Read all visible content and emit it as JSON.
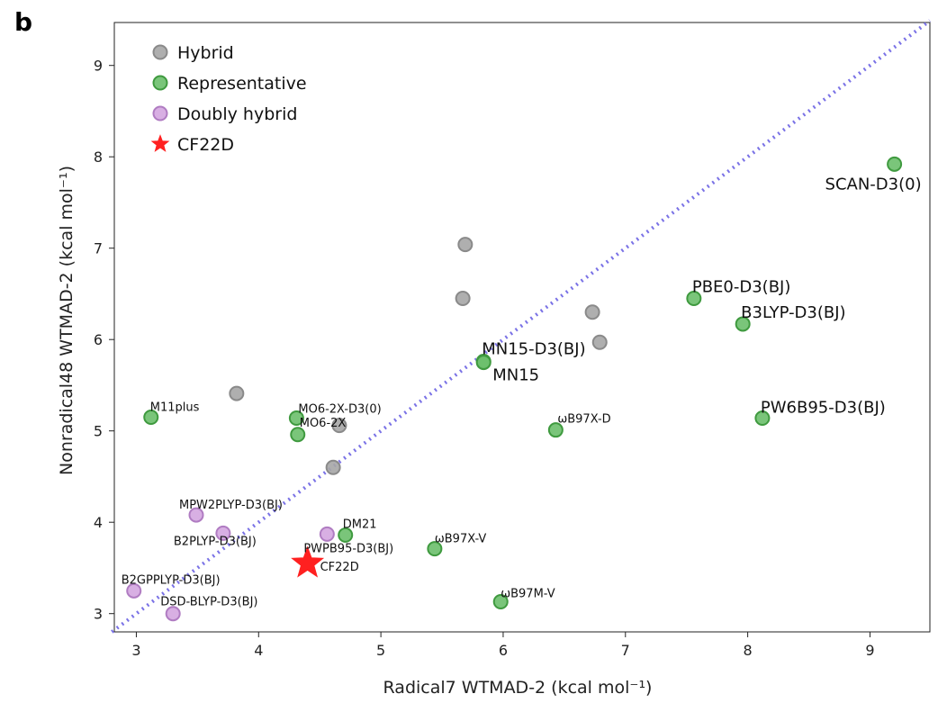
{
  "panel_label": "b",
  "colors": {
    "hybrid": "#a6a6a6",
    "representative": "#6cbf6c",
    "doubly_hybrid": "#d4a6e0",
    "cf22d": "#ff2020",
    "diagonal": "#7a72e6"
  },
  "chart_data": {
    "type": "scatter",
    "xlabel": "Radical7 WTMAD-2 (kcal mol⁻¹)",
    "ylabel": "Nonradical48 WTMAD-2 (kcal mol⁻¹)",
    "xlim": [
      2.82,
      9.49
    ],
    "ylim": [
      2.8,
      9.47
    ],
    "xticks": [
      3,
      4,
      5,
      6,
      7,
      8,
      9
    ],
    "yticks": [
      3,
      4,
      5,
      6,
      7,
      8,
      9
    ],
    "grid": false,
    "legend_position": "top-left",
    "diagonal_line": {
      "style": "dotted",
      "from": [
        2.8,
        2.8
      ],
      "to": [
        9.49,
        9.49
      ]
    },
    "legend": [
      "Hybrid",
      "Representative",
      "Doubly hybrid",
      "CF22D"
    ],
    "series": [
      {
        "name": "Hybrid",
        "marker": "circle",
        "points": [
          {
            "x": 3.82,
            "y": 5.41,
            "label": ""
          },
          {
            "x": 5.69,
            "y": 7.04,
            "label": ""
          },
          {
            "x": 5.67,
            "y": 6.45,
            "label": ""
          },
          {
            "x": 6.73,
            "y": 6.3,
            "label": ""
          },
          {
            "x": 6.79,
            "y": 5.97,
            "label": ""
          },
          {
            "x": 4.61,
            "y": 4.6,
            "label": ""
          },
          {
            "x": 4.66,
            "y": 5.06,
            "label": ""
          }
        ]
      },
      {
        "name": "Representative",
        "marker": "circle",
        "points": [
          {
            "x": 9.2,
            "y": 7.92,
            "label": "SCAN-D3(0)"
          },
          {
            "x": 7.56,
            "y": 6.45,
            "label": "PBE0-D3(BJ)"
          },
          {
            "x": 7.96,
            "y": 6.17,
            "label": "B3LYP-D3(BJ)"
          },
          {
            "x": 5.84,
            "y": 5.76,
            "label": "MN15-D3(BJ)"
          },
          {
            "x": 5.84,
            "y": 5.75,
            "label": "MN15"
          },
          {
            "x": 8.12,
            "y": 5.14,
            "label": "PW6B95-D3(BJ)"
          },
          {
            "x": 3.12,
            "y": 5.15,
            "label": "M11plus"
          },
          {
            "x": 4.31,
            "y": 5.14,
            "label": "MO6-2X-D3(0)"
          },
          {
            "x": 4.32,
            "y": 4.96,
            "label": "MO6-2X"
          },
          {
            "x": 6.43,
            "y": 5.01,
            "label": "ωB97X-D"
          },
          {
            "x": 4.71,
            "y": 3.86,
            "label": "DM21"
          },
          {
            "x": 5.44,
            "y": 3.71,
            "label": "ωB97X-V"
          },
          {
            "x": 5.98,
            "y": 3.13,
            "label": "ωB97M-V"
          }
        ]
      },
      {
        "name": "Doubly hybrid",
        "marker": "circle",
        "points": [
          {
            "x": 3.49,
            "y": 4.08,
            "label": "MPW2PLYP-D3(BJ)"
          },
          {
            "x": 3.71,
            "y": 3.88,
            "label": "B2PLYP-D3(BJ)"
          },
          {
            "x": 4.56,
            "y": 3.87,
            "label": "PWPB95-D3(BJ)"
          },
          {
            "x": 2.98,
            "y": 3.25,
            "label": "B2GPPLYP-D3(BJ)"
          },
          {
            "x": 3.3,
            "y": 3.0,
            "label": "DSD-BLYP-D3(BJ)"
          }
        ]
      },
      {
        "name": "CF22D",
        "marker": "star",
        "points": [
          {
            "x": 4.4,
            "y": 3.55,
            "label": "CF22D"
          }
        ]
      }
    ]
  }
}
